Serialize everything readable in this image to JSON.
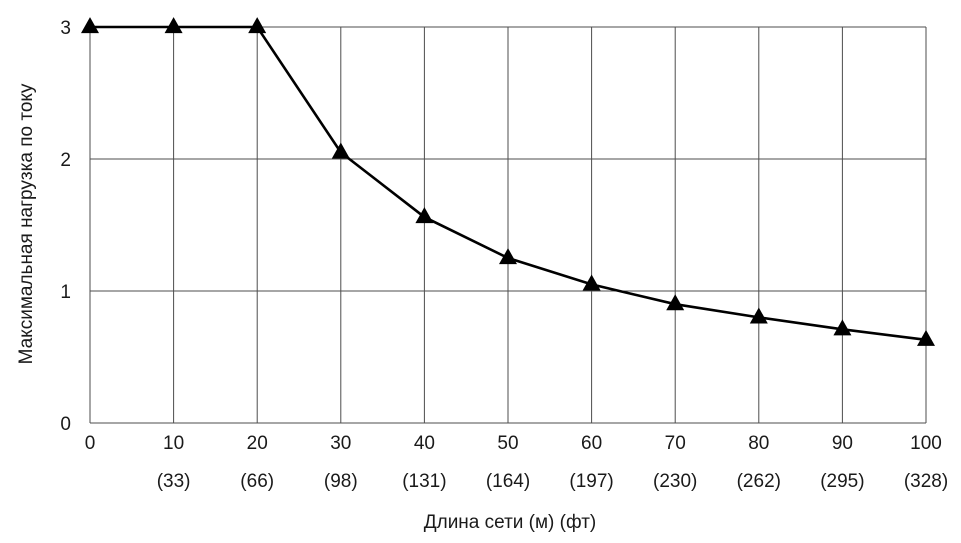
{
  "chart_data": {
    "type": "line",
    "title": "",
    "xlabel": "Длина сети (м) (фт)",
    "ylabel": "Максимальная нагрузка по току",
    "x": [
      0,
      10,
      20,
      30,
      40,
      50,
      60,
      70,
      80,
      90,
      100
    ],
    "x_tick_labels": [
      "0",
      "10",
      "20",
      "30",
      "40",
      "50",
      "60",
      "70",
      "80",
      "90",
      "100"
    ],
    "x_tick_sublabels": [
      "",
      "(33)",
      "(66)",
      "(98)",
      "(131)",
      "(164)",
      "(197)",
      "(230)",
      "(262)",
      "(295)",
      "(328)"
    ],
    "y_ticks": [
      0,
      1,
      2,
      3
    ],
    "y_tick_labels": [
      "0",
      "1",
      "2",
      "3"
    ],
    "xlim": [
      0,
      100
    ],
    "ylim": [
      0,
      3
    ],
    "grid": true,
    "marker": "triangle",
    "series": [
      {
        "values": [
          3,
          3,
          3,
          2.05,
          1.56,
          1.25,
          1.05,
          0.9,
          0.8,
          0.71,
          0.63
        ]
      }
    ],
    "colors": {
      "line": "#000000",
      "grid": "#4d4d4d",
      "text": "#1a1a1a"
    }
  }
}
